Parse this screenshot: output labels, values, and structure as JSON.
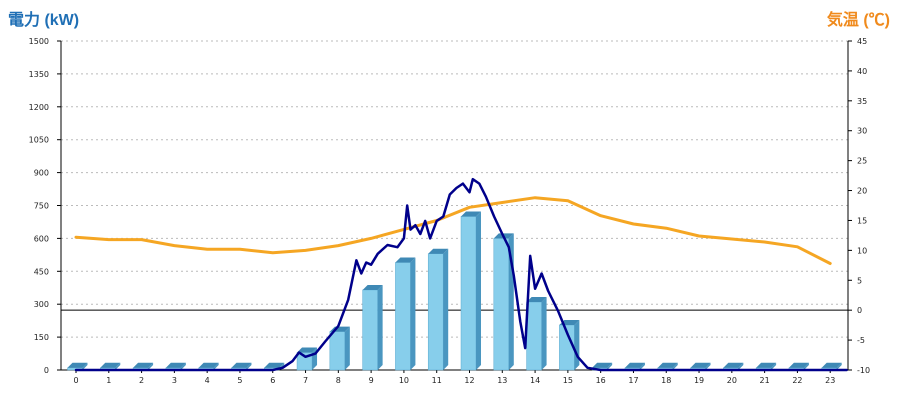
{
  "chart_data": {
    "type": "bar+line",
    "left_axis": {
      "title": "電力 (kW)",
      "ylim": [
        0,
        1500
      ],
      "ticks": [
        0,
        150,
        300,
        450,
        600,
        750,
        900,
        1050,
        1200,
        1350,
        1500
      ]
    },
    "right_axis": {
      "title": "気温 (℃)",
      "ylim": [
        -10,
        45
      ],
      "ticks": [
        -10,
        -5,
        0,
        5,
        10,
        15,
        20,
        25,
        30,
        35,
        40,
        45
      ]
    },
    "categories": [
      "0",
      "1",
      "2",
      "3",
      "4",
      "5",
      "6",
      "7",
      "8",
      "9",
      "10",
      "11",
      "12",
      "13",
      "14",
      "15",
      "16",
      "17",
      "18",
      "19",
      "20",
      "21",
      "22",
      "23"
    ],
    "bars": {
      "axis": "left",
      "color": "#87ceeb",
      "values": [
        10,
        10,
        10,
        10,
        10,
        10,
        10,
        80,
        175,
        365,
        490,
        530,
        700,
        600,
        310,
        205,
        10,
        10,
        10,
        10,
        10,
        10,
        10,
        10
      ]
    },
    "power_line": {
      "axis": "left",
      "color": "#00008b",
      "points": [
        [
          0,
          0
        ],
        [
          6,
          0
        ],
        [
          6.3,
          10
        ],
        [
          6.6,
          40
        ],
        [
          6.8,
          80
        ],
        [
          7,
          60
        ],
        [
          7.3,
          75
        ],
        [
          7.6,
          130
        ],
        [
          8,
          200
        ],
        [
          8.3,
          320
        ],
        [
          8.55,
          500
        ],
        [
          8.7,
          440
        ],
        [
          8.85,
          490
        ],
        [
          9,
          480
        ],
        [
          9.2,
          530
        ],
        [
          9.5,
          570
        ],
        [
          9.8,
          560
        ],
        [
          10,
          600
        ],
        [
          10.1,
          750
        ],
        [
          10.2,
          640
        ],
        [
          10.35,
          660
        ],
        [
          10.5,
          620
        ],
        [
          10.65,
          680
        ],
        [
          10.8,
          600
        ],
        [
          11,
          680
        ],
        [
          11.2,
          700
        ],
        [
          11.4,
          800
        ],
        [
          11.6,
          830
        ],
        [
          11.8,
          850
        ],
        [
          12,
          810
        ],
        [
          12.1,
          870
        ],
        [
          12.3,
          850
        ],
        [
          12.5,
          790
        ],
        [
          12.75,
          700
        ],
        [
          13,
          620
        ],
        [
          13.2,
          560
        ],
        [
          13.35,
          430
        ],
        [
          13.55,
          220
        ],
        [
          13.7,
          100
        ],
        [
          13.85,
          520
        ],
        [
          14,
          370
        ],
        [
          14.2,
          440
        ],
        [
          14.4,
          360
        ],
        [
          14.7,
          270
        ],
        [
          15,
          160
        ],
        [
          15.3,
          60
        ],
        [
          15.6,
          10
        ],
        [
          16,
          0
        ],
        [
          23.5,
          0
        ]
      ]
    },
    "temperature_line": {
      "axis": "right",
      "color": "#f5a623",
      "points": [
        [
          0,
          12.2
        ],
        [
          1,
          11.8
        ],
        [
          2,
          11.8
        ],
        [
          3,
          10.8
        ],
        [
          4,
          10.2
        ],
        [
          5,
          10.2
        ],
        [
          6,
          9.6
        ],
        [
          7,
          10
        ],
        [
          8,
          10.8
        ],
        [
          9,
          12
        ],
        [
          10,
          13.5
        ],
        [
          11,
          15
        ],
        [
          12,
          17.2
        ],
        [
          13,
          18
        ],
        [
          14,
          18.8
        ],
        [
          15,
          18.3
        ],
        [
          16,
          15.8
        ],
        [
          17,
          14.4
        ],
        [
          18,
          13.7
        ],
        [
          19,
          12.4
        ],
        [
          20,
          11.9
        ],
        [
          21,
          11.4
        ],
        [
          22,
          10.6
        ],
        [
          23,
          7.8
        ]
      ]
    },
    "reference_line": {
      "axis": "right",
      "value": 0,
      "color": "#000000"
    },
    "grid": true
  }
}
